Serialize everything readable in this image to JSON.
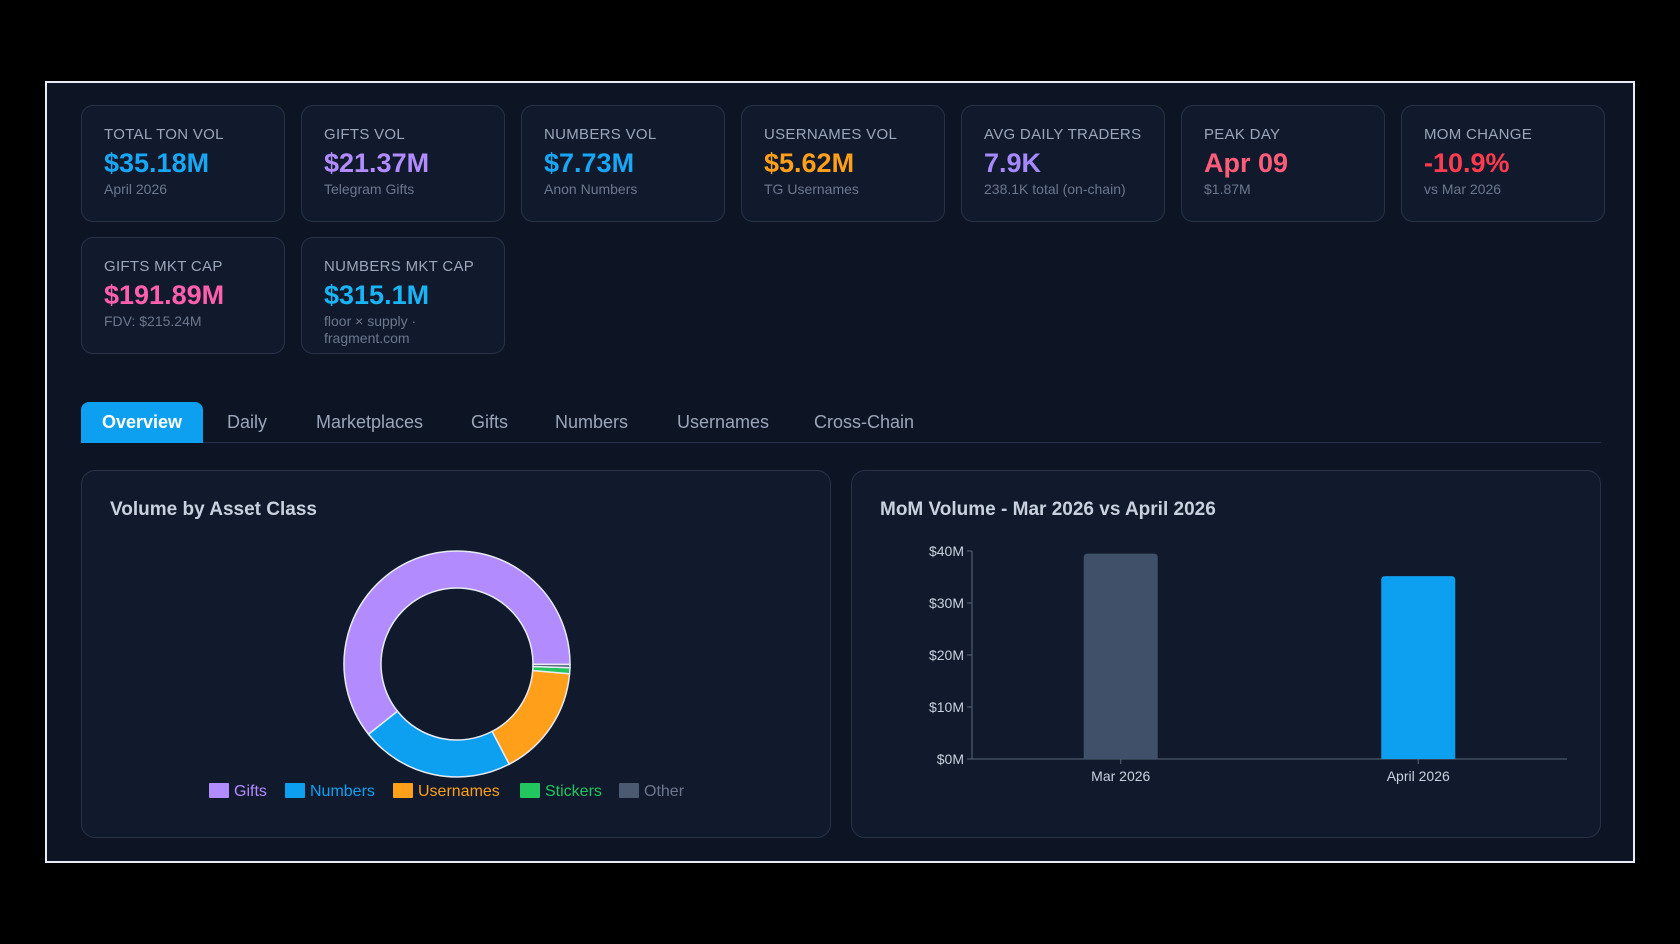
{
  "cards": [
    {
      "label": "TOTAL TON VOL",
      "value": "$35.18M",
      "sub": "April 2026",
      "color": "#18a7f5"
    },
    {
      "label": "GIFTS VOL",
      "value": "$21.37M",
      "sub": "Telegram Gifts",
      "color": "#b28cff"
    },
    {
      "label": "NUMBERS VOL",
      "value": "$7.73M",
      "sub": "Anon Numbers",
      "color": "#18a7f5"
    },
    {
      "label": "USERNAMES VOL",
      "value": "$5.62M",
      "sub": "TG Usernames",
      "color": "#ff9f1a"
    },
    {
      "label": "AVG DAILY TRADERS",
      "value": "7.9K",
      "sub": "238.1K total (on-chain)",
      "color": "#a689ff"
    },
    {
      "label": "PEAK DAY",
      "value": "Apr 09",
      "sub": "$1.87M",
      "color": "#ff5c7a"
    },
    {
      "label": "MOM CHANGE",
      "value": "-10.9%",
      "sub": "vs Mar 2026",
      "color": "#ff3b4f"
    },
    {
      "label": "GIFTS MKT CAP",
      "value": "$191.89M",
      "sub": "FDV: $215.24M",
      "color": "#ff5fae"
    },
    {
      "label": "NUMBERS MKT CAP",
      "value": "$315.1M",
      "sub": "floor × supply · fragment.com",
      "color": "#18b4f5"
    }
  ],
  "tabs": [
    {
      "label": "Overview",
      "active": true
    },
    {
      "label": "Daily"
    },
    {
      "label": "Marketplaces"
    },
    {
      "label": "Gifts"
    },
    {
      "label": "Numbers"
    },
    {
      "label": "Usernames"
    },
    {
      "label": "Cross-Chain"
    }
  ],
  "donut_panel": {
    "title": "Volume by Asset Class"
  },
  "bar_panel": {
    "title": "MoM Volume - Mar 2026 vs April 2026"
  },
  "chart_data": [
    {
      "type": "pie",
      "title": "Volume by Asset Class",
      "categories": [
        "Gifts",
        "Numbers",
        "Usernames",
        "Stickers",
        "Other"
      ],
      "values": [
        21.37,
        7.73,
        5.62,
        0.3,
        0.16
      ],
      "colors": [
        "#b28cff",
        "#0ea0f0",
        "#ff9f1a",
        "#22c55e",
        "#4b5a70"
      ],
      "legend": "bottom"
    },
    {
      "type": "bar",
      "title": "MoM Volume - Mar 2026 vs April 2026",
      "categories": [
        "Mar 2026",
        "April 2026"
      ],
      "values": [
        39.5,
        35.18
      ],
      "colors": [
        "#3f5068",
        "#0ea0f0"
      ],
      "yticks": [
        "$0M",
        "$10M",
        "$20M",
        "$30M",
        "$40M"
      ],
      "ylim": [
        0,
        40
      ]
    }
  ]
}
